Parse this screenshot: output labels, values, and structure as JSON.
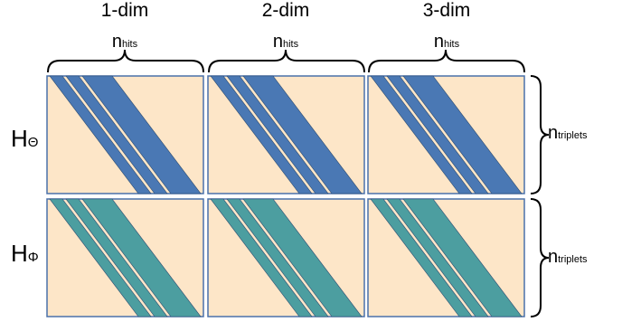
{
  "columns": [
    {
      "title": "1-dim",
      "n_main": "n",
      "n_sub": "hits"
    },
    {
      "title": "2-dim",
      "n_main": "n",
      "n_sub": "hits"
    },
    {
      "title": "3-dim",
      "n_main": "n",
      "n_sub": "hits"
    }
  ],
  "rows": [
    {
      "main": "H",
      "sub": "Θ",
      "n_main": "n",
      "n_sub": "triplets",
      "band_color": "#4a78b4"
    },
    {
      "main": "H",
      "sub": "Φ",
      "n_main": "n",
      "n_sub": "triplets",
      "band_color": "#4c9ea0"
    }
  ],
  "colors": {
    "matrix_fill": "#fde6c8",
    "matrix_border": "#4a70aa",
    "brace": "#000000"
  }
}
